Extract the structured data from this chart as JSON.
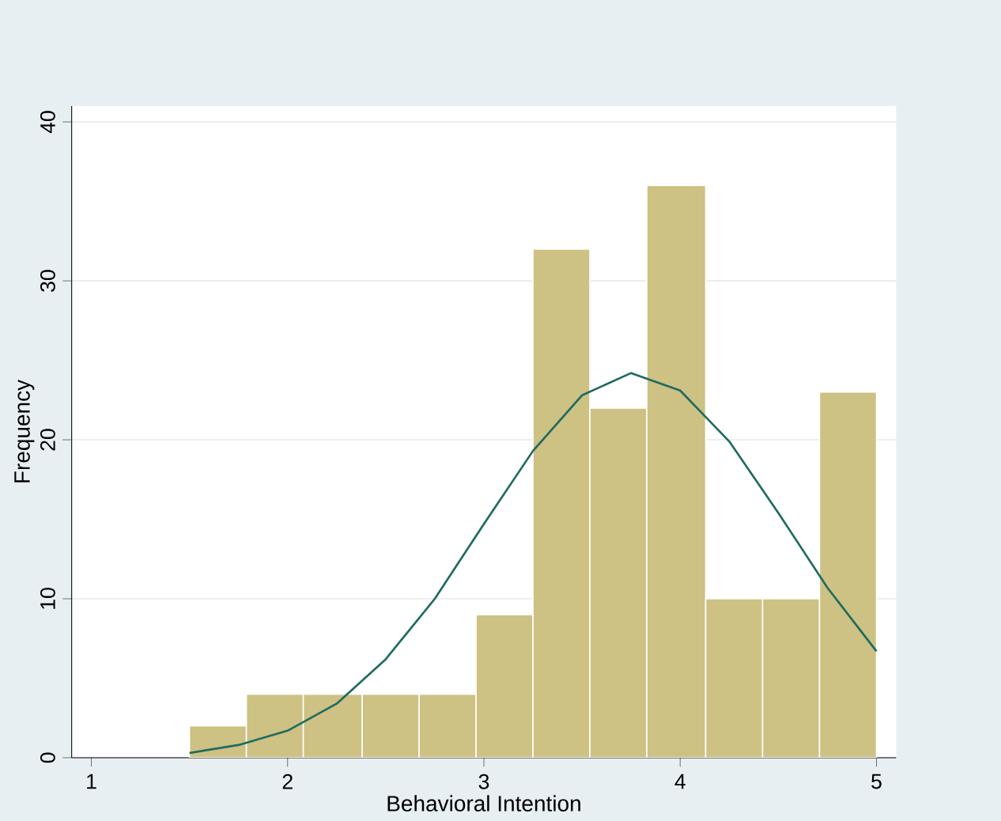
{
  "chart_data": {
    "type": "histogram",
    "xlabel": "Behavioral Intention",
    "ylabel": "Frequency",
    "bins": [
      1.5,
      1.79,
      2.08,
      2.38,
      2.67,
      2.96,
      3.25,
      3.54,
      3.83,
      4.13,
      4.42,
      4.71,
      5
    ],
    "values": [
      2,
      4,
      4,
      4,
      4,
      9,
      32,
      22,
      36,
      10,
      10,
      23
    ],
    "color": "#cdc183",
    "series": [
      {
        "type": "line",
        "color": "#1f6b60",
        "x": [
          1.5,
          1.75,
          2,
          2.25,
          2.5,
          2.75,
          3,
          3.25,
          3.5,
          3.75,
          4,
          4.25,
          4.5,
          4.75,
          5
        ],
        "values": [
          0.3,
          0.8,
          1.7,
          3.4,
          6.2,
          10,
          14.7,
          19.3,
          22.8,
          24.2,
          23.1,
          19.9,
          15.4,
          10.7,
          6.7
        ]
      }
    ],
    "xlim": [
      0.9,
      5.1
    ],
    "ylim": [
      0,
      41
    ],
    "xticks": [
      1,
      2,
      3,
      4,
      5
    ],
    "yticks": [
      0,
      10,
      20,
      30,
      40
    ],
    "grid": "y"
  }
}
